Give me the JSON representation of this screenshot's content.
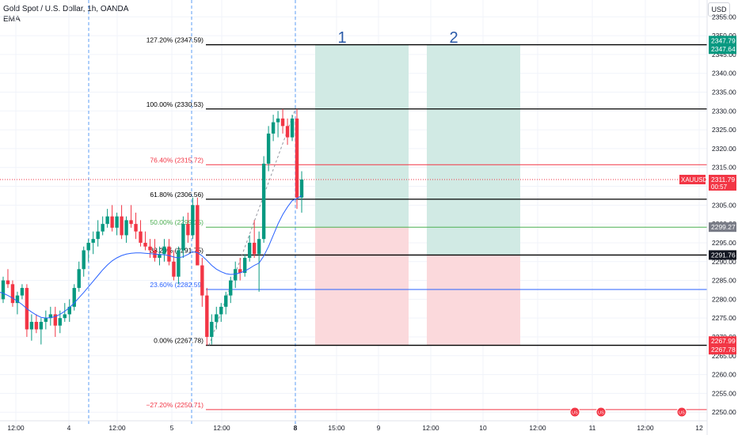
{
  "header": {
    "title": "Gold Spot / U.S. Dollar, 1h, OANDA",
    "indicator": "EMA",
    "currency": "USD"
  },
  "colors": {
    "bull": "#089981",
    "bear": "#f23645",
    "ema": "#2962ff",
    "grid": "#f0f3fa",
    "profit_zone": "#d1eae4",
    "loss_zone": "#fbd9dc"
  },
  "chart_data": {
    "type": "candlestick",
    "ylim": [
      2245,
      2358
    ],
    "y_ticks": [
      2250,
      2255,
      2260,
      2265,
      2270,
      2275,
      2280,
      2285,
      2290,
      2295,
      2300,
      2305,
      2310,
      2315,
      2320,
      2325,
      2330,
      2335,
      2340,
      2345,
      2350,
      2355
    ],
    "x_ticks": [
      "12:00",
      "4",
      "12:00",
      "5",
      "12:00",
      "8",
      "15:00",
      "9",
      "12:00",
      "10",
      "12:00",
      "11",
      "12:00",
      "12"
    ],
    "candles": [
      [
        2282,
        2284,
        2276,
        2280
      ],
      [
        2280,
        2286,
        2279,
        2285
      ],
      [
        2285,
        2288,
        2283,
        2284
      ],
      [
        2284,
        2285,
        2278,
        2279
      ],
      [
        2279,
        2282,
        2276,
        2281
      ],
      [
        2281,
        2284,
        2280,
        2283
      ],
      [
        2283,
        2284,
        2270,
        2272
      ],
      [
        2272,
        2276,
        2269,
        2274
      ],
      [
        2274,
        2276,
        2271,
        2272
      ],
      [
        2272,
        2275,
        2268,
        2274
      ],
      [
        2274,
        2277,
        2272,
        2275
      ],
      [
        2275,
        2278,
        2273,
        2276
      ],
      [
        2276,
        2278,
        2270,
        2273
      ],
      [
        2273,
        2277,
        2271,
        2275
      ],
      [
        2275,
        2279,
        2274,
        2276
      ],
      [
        2276,
        2280,
        2274,
        2278
      ],
      [
        2278,
        2284,
        2277,
        2283
      ],
      [
        2283,
        2290,
        2282,
        2288
      ],
      [
        2288,
        2294,
        2286,
        2293
      ],
      [
        2293,
        2296,
        2290,
        2295
      ],
      [
        2295,
        2298,
        2292,
        2296
      ],
      [
        2296,
        2301,
        2294,
        2298
      ],
      [
        2298,
        2302,
        2297,
        2300
      ],
      [
        2300,
        2304,
        2299,
        2302
      ],
      [
        2302,
        2305,
        2298,
        2299
      ],
      [
        2299,
        2303,
        2297,
        2302
      ],
      [
        2302,
        2305,
        2296,
        2297
      ],
      [
        2297,
        2302,
        2295,
        2301
      ],
      [
        2301,
        2305,
        2299,
        2300
      ],
      [
        2300,
        2303,
        2296,
        2298
      ],
      [
        2298,
        2301,
        2294,
        2295
      ],
      [
        2295,
        2298,
        2293,
        2294
      ],
      [
        2294,
        2296,
        2291,
        2293
      ],
      [
        2293,
        2296,
        2290,
        2291
      ],
      [
        2291,
        2294,
        2289,
        2292
      ],
      [
        2292,
        2296,
        2290,
        2294
      ],
      [
        2294,
        2296,
        2289,
        2290
      ],
      [
        2290,
        2293,
        2285,
        2286
      ],
      [
        2286,
        2294,
        2284,
        2293
      ],
      [
        2293,
        2302,
        2291,
        2300
      ],
      [
        2300,
        2303,
        2295,
        2297
      ],
      [
        2297,
        2307,
        2296,
        2305
      ],
      [
        2305,
        2307,
        2289,
        2289
      ],
      [
        2289,
        2291,
        2278,
        2281
      ],
      [
        2281,
        2283,
        2267.78,
        2270
      ],
      [
        2270,
        2276,
        2268,
        2274
      ],
      [
        2274,
        2278,
        2272,
        2276
      ],
      [
        2276,
        2279,
        2274,
        2278
      ],
      [
        2278,
        2282,
        2276,
        2281
      ],
      [
        2281,
        2286,
        2279,
        2285
      ],
      [
        2285,
        2290,
        2283,
        2288
      ],
      [
        2288,
        2291,
        2285,
        2287
      ],
      [
        2287,
        2292,
        2286,
        2291
      ],
      [
        2291,
        2297,
        2290,
        2295
      ],
      [
        2295,
        2301,
        2291,
        2292
      ],
      [
        2292,
        2298,
        2282,
        2296
      ],
      [
        2296,
        2318,
        2295,
        2316
      ],
      [
        2316,
        2326,
        2314,
        2324
      ],
      [
        2324,
        2329,
        2322,
        2327
      ],
      [
        2327,
        2330,
        2323,
        2328
      ],
      [
        2328,
        2330.53,
        2324,
        2326
      ],
      [
        2326,
        2328,
        2321,
        2323
      ],
      [
        2323,
        2329,
        2322,
        2328
      ],
      [
        2328,
        2330.53,
        2304,
        2307
      ],
      [
        2307,
        2314,
        2303,
        2311.79
      ]
    ],
    "ema": [
      2282,
      2281.6,
      2281,
      2280.3,
      2279.5,
      2278.6,
      2277.5,
      2276.6,
      2275.8,
      2275.2,
      2275,
      2275.1,
      2275.4,
      2276,
      2276.8,
      2277.8,
      2279,
      2280.4,
      2281.8,
      2283.3,
      2284.8,
      2286.3,
      2287.8,
      2289.1,
      2290.2,
      2291,
      2291.6,
      2292,
      2292.2,
      2292.3,
      2292.3,
      2292.2,
      2292.1,
      2292,
      2291.9,
      2291.8,
      2291.6,
      2291.2,
      2291,
      2291.3,
      2291.9,
      2292.6,
      2292.4,
      2291.5,
      2290.3,
      2289,
      2288,
      2287.3,
      2286.8,
      2286.6,
      2286.7,
      2287,
      2287.5,
      2288.2,
      2289,
      2289.6,
      2291.5,
      2294,
      2297,
      2300,
      2302.5,
      2304.5,
      2306.2,
      2306.8,
      2307.5
    ],
    "fib_levels": [
      {
        "label": "127.20% (2347.59)",
        "price": 2347.59,
        "color": "#000000"
      },
      {
        "label": "100.00% (2330.53)",
        "price": 2330.53,
        "color": "#000000"
      },
      {
        "label": "76.40% (2315.72)",
        "price": 2315.72,
        "color": "#f23645"
      },
      {
        "label": "61.80% (2306.56)",
        "price": 2306.56,
        "color": "#000000"
      },
      {
        "label": "50.00% (2299.15)",
        "price": 2299.15,
        "color": "#4caf50"
      },
      {
        "label": "38.20% (2291.75)",
        "price": 2291.75,
        "color": "#000000"
      },
      {
        "label": "23.60% (2282.59)",
        "price": 2282.59,
        "color": "#2962ff"
      },
      {
        "label": "0.00% (2267.78)",
        "price": 2267.78,
        "color": "#000000"
      },
      {
        "label": "−27.20% (2250.71)",
        "price": 2250.71,
        "color": "#f23645"
      }
    ],
    "zones": [
      {
        "label": "1",
        "entry": 2299.15,
        "target": 2347.59,
        "stop": 2267.78
      },
      {
        "label": "2",
        "entry": 2291.75,
        "target": 2347.59,
        "stop": 2267.78
      }
    ],
    "price_labels": [
      {
        "text": "2347.79",
        "price": 2348.7,
        "bg": "#089981",
        "fg": "#ffffff"
      },
      {
        "text": "2347.64",
        "price": 2346.4,
        "bg": "#089981",
        "fg": "#ffffff"
      },
      {
        "text": "2299.27",
        "price": 2299.15,
        "bg": "#787b86",
        "fg": "#ffffff"
      },
      {
        "text": "2291.76",
        "price": 2291.75,
        "bg": "#131722",
        "fg": "#ffffff"
      },
      {
        "text": "2267.99",
        "price": 2268.9,
        "bg": "#f23645",
        "fg": "#ffffff"
      },
      {
        "text": "2267.78",
        "price": 2266.6,
        "bg": "#f23645",
        "fg": "#ffffff"
      }
    ],
    "current": {
      "symbol": "XAUUSD",
      "price": "2311.79",
      "countdown": "00:57",
      "value": 2311.79
    },
    "events": [
      "US",
      "US",
      "US"
    ]
  }
}
